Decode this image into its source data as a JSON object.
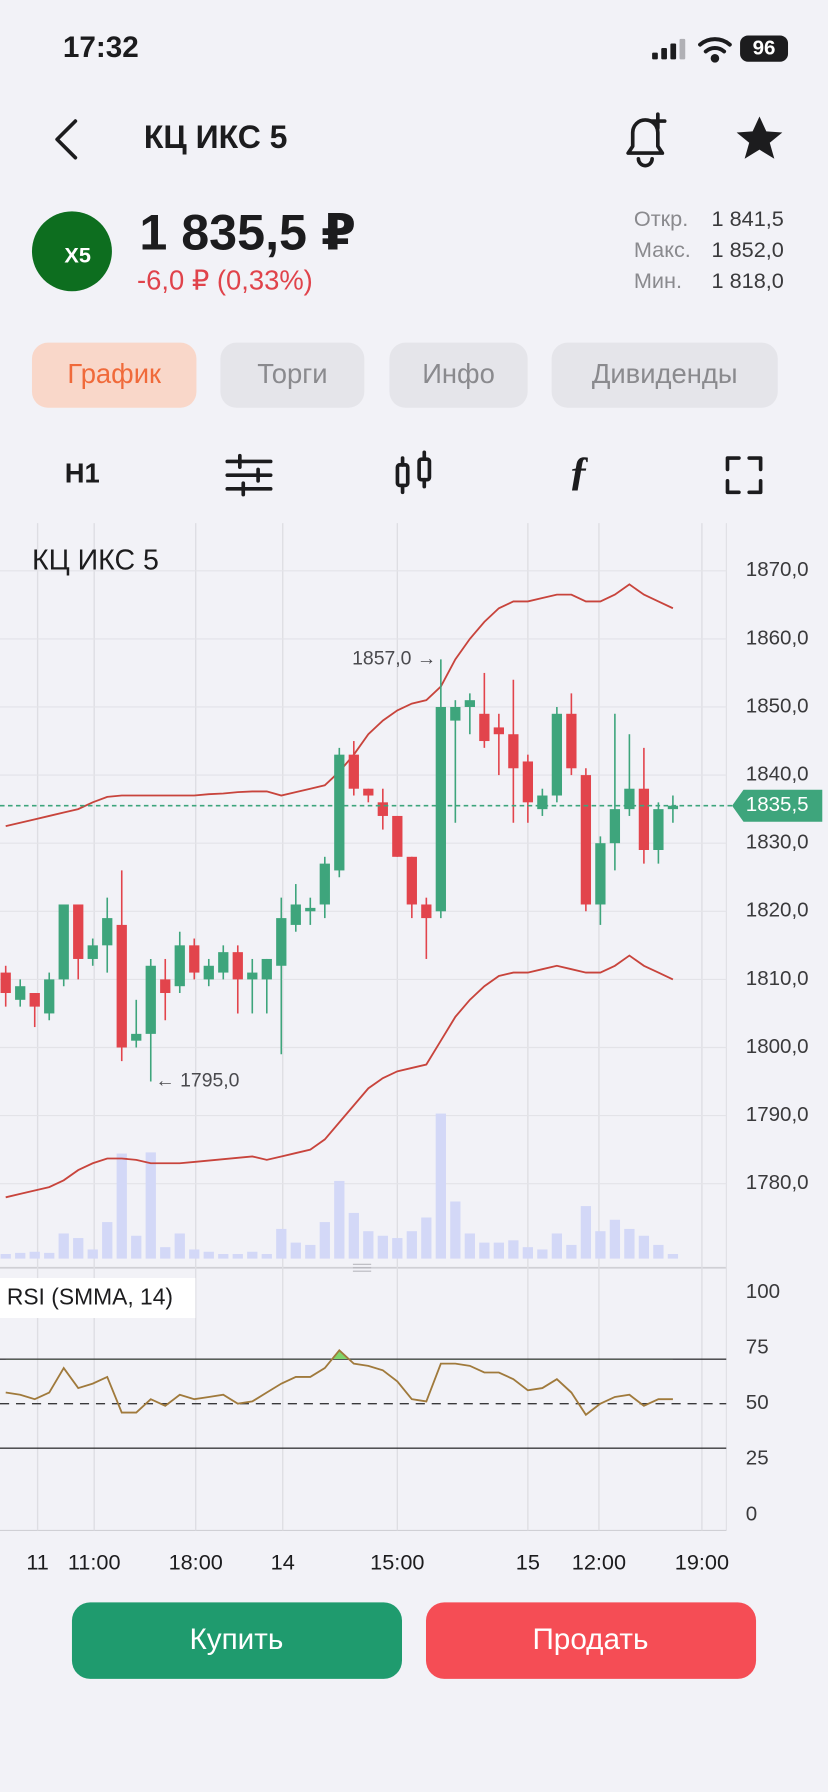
{
  "status_bar": {
    "time": "17:32",
    "battery": "96"
  },
  "header": {
    "title": "КЦ ИКС 5"
  },
  "quote": {
    "logo": "X5",
    "price": "1 835,5 ₽",
    "change": "-6,0 ₽ (0,33%)",
    "stats": [
      {
        "label": "Откр.",
        "value": "1 841,5"
      },
      {
        "label": "Макс.",
        "value": "1 852,0"
      },
      {
        "label": "Мин.",
        "value": "1 818,0"
      }
    ]
  },
  "tabs": [
    "График",
    "Торги",
    "Инфо",
    "Дивиденды"
  ],
  "toolbar": {
    "interval": "H1"
  },
  "chart_data": [
    {
      "type": "candlestick",
      "title": "КЦ ИКС 5",
      "open": [
        1811,
        1807,
        1808,
        1805,
        1810,
        1821,
        1813,
        1815,
        1818,
        1801,
        1802,
        1810,
        1809,
        1815,
        1810,
        1811,
        1814,
        1810,
        1810,
        1812,
        1818,
        1820,
        1821,
        1826,
        1843,
        1838,
        1836,
        1834,
        1828,
        1821,
        1820,
        1848,
        1850,
        1849,
        1847,
        1846,
        1842,
        1835,
        1837,
        1849,
        1840,
        1821,
        1830,
        1835,
        1838,
        1829,
        1835
      ],
      "high": [
        1812,
        1810,
        1808,
        1811,
        1821,
        1821,
        1816,
        1822,
        1826,
        1807,
        1813,
        1813,
        1817,
        1816,
        1813,
        1815,
        1815,
        1813,
        1813,
        1822,
        1824,
        1822,
        1828,
        1844,
        1845,
        1838,
        1838,
        1834,
        1828,
        1822,
        1857,
        1851,
        1852,
        1855,
        1849,
        1854,
        1843,
        1838,
        1850,
        1852,
        1841,
        1831,
        1849,
        1846,
        1844,
        1836,
        1837
      ],
      "low": [
        1806,
        1806,
        1803,
        1804,
        1809,
        1810,
        1812,
        1811,
        1798,
        1800,
        1795,
        1804,
        1808,
        1810,
        1809,
        1810,
        1805,
        1805,
        1805,
        1799,
        1817,
        1818,
        1819,
        1825,
        1837,
        1836,
        1832,
        1828,
        1819,
        1813,
        1819,
        1833,
        1846,
        1844,
        1840,
        1833,
        1833,
        1834,
        1836,
        1840,
        1820,
        1818,
        1826,
        1834,
        1827,
        1827,
        1833
      ],
      "close": [
        1808,
        1809,
        1806,
        1810,
        1821,
        1813,
        1815,
        1819,
        1800,
        1802,
        1812,
        1808,
        1815,
        1811,
        1812,
        1814,
        1810,
        1811,
        1813,
        1819,
        1821,
        1820.5,
        1827,
        1843,
        1838,
        1837,
        1834,
        1828,
        1821,
        1819,
        1850,
        1850,
        1851,
        1845,
        1846,
        1841,
        1836,
        1837,
        1849,
        1841,
        1821,
        1830,
        1835,
        1838,
        1829,
        1835,
        1835.5
      ],
      "volume": [
        4,
        5,
        6,
        5,
        22,
        18,
        8,
        32,
        92,
        20,
        93,
        10,
        22,
        8,
        6,
        4,
        4,
        6,
        4,
        26,
        14,
        12,
        32,
        68,
        40,
        24,
        20,
        18,
        24,
        36,
        127,
        50,
        22,
        14,
        14,
        16,
        10,
        8,
        22,
        12,
        46,
        24,
        34,
        26,
        20,
        12,
        4
      ],
      "upper_band": [
        1832.5,
        1833,
        1833.5,
        1834,
        1834.5,
        1835,
        1836,
        1836.8,
        1837,
        1837,
        1837,
        1837,
        1837,
        1837,
        1837.2,
        1837.3,
        1837.5,
        1837.6,
        1837.6,
        1837,
        1837.5,
        1838,
        1838.5,
        1840.5,
        1843,
        1846,
        1848,
        1849.5,
        1850.5,
        1851,
        1853,
        1857,
        1860,
        1862.5,
        1864.5,
        1865.5,
        1865.5,
        1866,
        1866.5,
        1866.5,
        1865.5,
        1865.5,
        1866.5,
        1868,
        1866.5,
        1865.5,
        1864.5
      ],
      "lower_band": [
        1778,
        1778.5,
        1779,
        1779.5,
        1780.5,
        1782,
        1783,
        1783.7,
        1783.7,
        1783.5,
        1783,
        1783,
        1783,
        1783.2,
        1783.4,
        1783.6,
        1783.8,
        1784,
        1783.5,
        1784,
        1784.5,
        1785,
        1786.5,
        1789,
        1791.5,
        1794,
        1795.5,
        1796.5,
        1797,
        1797.5,
        1801,
        1804.5,
        1807,
        1809,
        1810.5,
        1811,
        1811,
        1811.5,
        1812,
        1811.5,
        1811,
        1811,
        1812,
        1813.5,
        1812,
        1811,
        1810
      ],
      "up_color": "#3ea57c",
      "down_color": "#e2444c",
      "band_color": "#c8443c",
      "volume_color": "#d3d8f7",
      "ylim": [
        1769,
        1877
      ],
      "yticks": [
        {
          "value": 1870,
          "label": "1870,0"
        },
        {
          "value": 1860,
          "label": "1860,0"
        },
        {
          "value": 1850,
          "label": "1850,0"
        },
        {
          "value": 1840,
          "label": "1840,0"
        },
        {
          "value": 1830,
          "label": "1830,0"
        },
        {
          "value": 1820,
          "label": "1820,0"
        },
        {
          "value": 1810,
          "label": "1810,0"
        },
        {
          "value": 1800,
          "label": "1800,0"
        },
        {
          "value": 1790,
          "label": "1790,0"
        },
        {
          "value": 1780,
          "label": "1780,0"
        }
      ],
      "xticks": [
        {
          "value": 2.2,
          "label": "11"
        },
        {
          "value": 6.1,
          "label": "11:00"
        },
        {
          "value": 13.1,
          "label": "18:00"
        },
        {
          "value": 19.1,
          "label": "14"
        },
        {
          "value": 27,
          "label": "15:00"
        },
        {
          "value": 36,
          "label": "15"
        },
        {
          "value": 40.9,
          "label": "12:00"
        },
        {
          "value": 48,
          "label": "19:00"
        }
      ],
      "annotations": [
        {
          "value": 1857,
          "label": "1857,0 →"
        },
        {
          "value": 1795,
          "label": "← 1795,0"
        }
      ],
      "last_price": {
        "value": 1835.5,
        "label": "1835,5"
      },
      "last_price_color": "#3ea57c",
      "grid": true
    },
    {
      "type": "line",
      "title": "RSI (SMMA, 14)",
      "values": [
        55,
        54,
        52,
        55,
        66,
        57,
        59,
        62,
        46,
        46,
        52,
        49,
        54,
        52,
        53,
        54,
        50,
        51,
        55,
        59,
        62,
        62,
        66,
        74,
        68,
        67,
        65,
        60,
        52,
        51,
        68,
        68,
        67,
        64,
        64,
        61,
        56,
        57,
        61,
        55,
        45,
        50,
        53,
        54,
        49,
        52,
        52
      ],
      "color": "#a07a3c",
      "overbought_color": "#7fd46a",
      "ylim": [
        -7,
        107
      ],
      "yticks": [
        100,
        75,
        50,
        25,
        0
      ],
      "levels": [
        70,
        30
      ],
      "midline": 50
    }
  ],
  "actions": {
    "buy": "Купить",
    "sell": "Продать"
  }
}
